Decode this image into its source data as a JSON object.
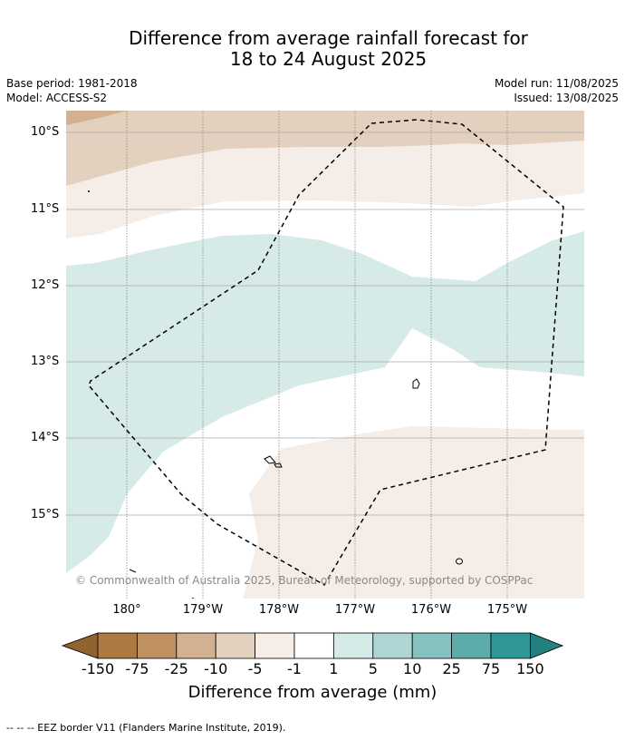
{
  "header": {
    "title_line1": "Difference from average rainfall forecast for",
    "title_line2": "18 to 24 August 2025",
    "base_period": "Base period: 1981-2018",
    "model": "Model: ACCESS-S2",
    "model_run": "Model run: 11/08/2025",
    "issued": "Issued: 13/08/2025"
  },
  "map": {
    "lat_labels": [
      "10°S",
      "11°S",
      "12°S",
      "13°S",
      "14°S",
      "15°S"
    ],
    "lon_labels": [
      "180°",
      "179°W",
      "178°W",
      "177°W",
      "176°W",
      "175°W"
    ],
    "copyright": "© Commonwealth of Australia 2025, Bureau of Meteorology, supported by COSPPac"
  },
  "colorbar": {
    "ticks": [
      "-150",
      "-75",
      "-25",
      "-10",
      "-5",
      "-1",
      "1",
      "5",
      "10",
      "25",
      "75",
      "150"
    ],
    "colors": [
      "#ac7a41",
      "#bf9062",
      "#d3b090",
      "#e3d0be",
      "#f5ede8",
      "#ffffff",
      "#d6eae8",
      "#afd6d4",
      "#84c1bf",
      "#5bacab",
      "#2f9896"
    ],
    "under_color": "#91642f",
    "over_color": "#24807f",
    "label": "Difference from average (mm)"
  },
  "footer": {
    "eez_note": "--  --  -- EEZ border V11 (Flanders Marine Institute, 2019)."
  }
}
